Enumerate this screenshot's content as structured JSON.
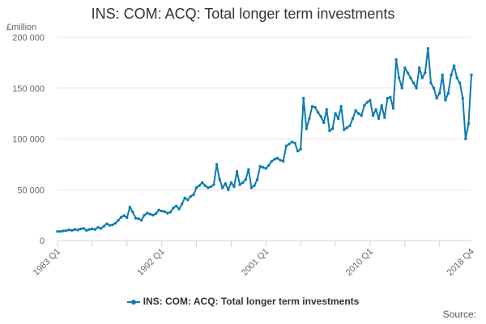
{
  "title": "INS: COM: ACQ: Total longer term investments",
  "unit_label": "£million",
  "source_label": "Source:",
  "legend_label": "INS: COM: ACQ: Total longer term investments",
  "colors": {
    "series": "#0c7bb3",
    "grid": "#e6e6e6",
    "axis": "#ccd6eb"
  },
  "chart_data": {
    "type": "line",
    "title": "INS: COM: ACQ: Total longer term investments",
    "xlabel": "",
    "ylabel": "£million",
    "ylim": [
      0,
      200000
    ],
    "yticks": [
      0,
      50000,
      100000,
      150000,
      200000
    ],
    "ytick_labels": [
      "0",
      "50 000",
      "100 000",
      "150 000",
      "200 000"
    ],
    "xtick_labels": [
      "1983 Q1",
      "1992 Q1",
      "2001 Q1",
      "2010 Q1",
      "2018 Q4"
    ],
    "xtick_indices": [
      0,
      36,
      72,
      108,
      143
    ],
    "start_period": "1983 Q1",
    "end_period": "2018 Q4",
    "series": [
      {
        "name": "INS: COM: ACQ: Total longer term investments",
        "values": [
          9000,
          9000,
          9500,
          9800,
          10500,
          10000,
          11000,
          10500,
          11500,
          12000,
          10000,
          11000,
          11500,
          11000,
          13000,
          12000,
          14000,
          16500,
          15000,
          15500,
          17000,
          20000,
          23000,
          24500,
          22500,
          33000,
          28000,
          22000,
          21500,
          20000,
          25000,
          27000,
          26000,
          25000,
          26500,
          30000,
          29000,
          28500,
          27000,
          28000,
          32000,
          34000,
          31000,
          36000,
          42000,
          40000,
          43500,
          45000,
          52000,
          54000,
          57000,
          54000,
          52000,
          53000,
          55000,
          75000,
          60000,
          52000,
          56000,
          50000,
          57000,
          53000,
          68000,
          55000,
          57000,
          60000,
          70000,
          52000,
          54000,
          60000,
          73000,
          72000,
          71000,
          74000,
          78000,
          80000,
          81000,
          79000,
          78000,
          93000,
          95000,
          97000,
          96000,
          88000,
          90000,
          140000,
          110000,
          120000,
          132000,
          131000,
          126000,
          122000,
          116000,
          129000,
          108000,
          110000,
          125000,
          120000,
          132000,
          109000,
          111000,
          113000,
          120000,
          128000,
          125000,
          123000,
          133000,
          136000,
          138000,
          123000,
          129000,
          120000,
          133000,
          121000,
          140000,
          141000,
          130000,
          178000,
          160000,
          150000,
          170000,
          165000,
          160000,
          155000,
          150000,
          170000,
          160000,
          165000,
          189000,
          155000,
          150000,
          140000,
          145000,
          163000,
          138000,
          145000,
          163000,
          172000,
          160000,
          155000,
          140000,
          100000,
          115000,
          163000
        ]
      }
    ]
  }
}
